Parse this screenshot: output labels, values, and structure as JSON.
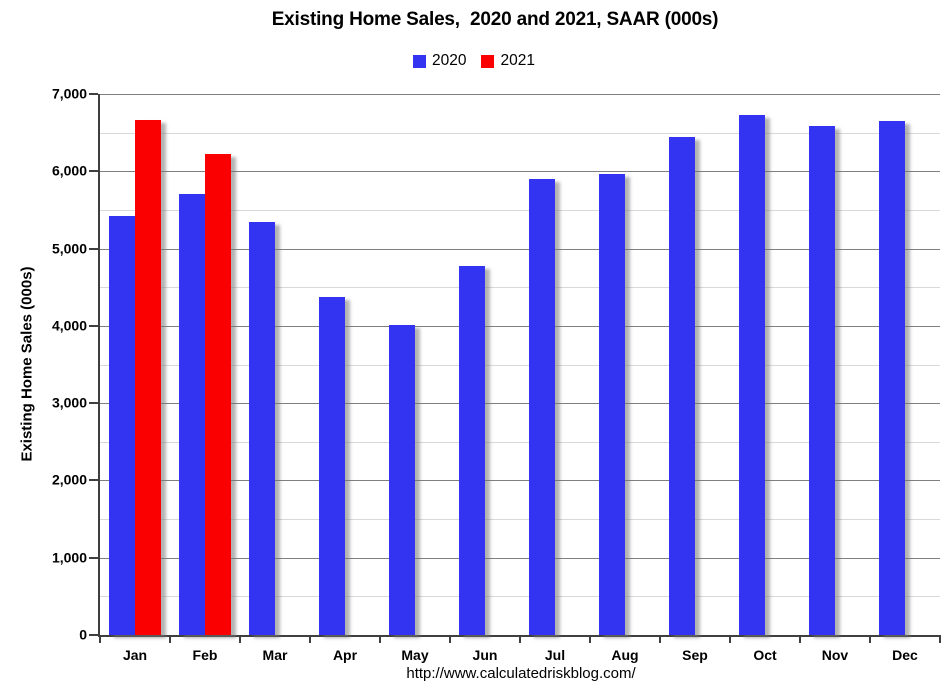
{
  "chart_data": {
    "type": "bar",
    "title": "Existing Home Sales,  2020 and 2021, SAAR (000s)",
    "categories": [
      "Jan",
      "Feb",
      "Mar",
      "Apr",
      "May",
      "Jun",
      "Jul",
      "Aug",
      "Sep",
      "Oct",
      "Nov",
      "Dec"
    ],
    "series": [
      {
        "name": "2020",
        "color": "#3333f2",
        "values": [
          5420,
          5700,
          5340,
          4370,
          4010,
          4770,
          5900,
          5970,
          6440,
          6730,
          6590,
          6650
        ]
      },
      {
        "name": "2021",
        "color": "#fb0000",
        "values": [
          6660,
          6220,
          null,
          null,
          null,
          null,
          null,
          null,
          null,
          null,
          null,
          null
        ]
      }
    ],
    "xlabel": "",
    "ylabel": "Existing Home Sales (000s)",
    "ylim": [
      0,
      7000
    ],
    "y_major_step": 1000,
    "y_minor_step": 500,
    "y_tick_labels": [
      "7,000",
      "6,000",
      "5,000",
      "4,000",
      "3,000",
      "2,000",
      "1,000",
      "0"
    ],
    "grid": "horizontal major and minor gridlines on",
    "legend_position": "top-center",
    "footer": "http://www.calculatedriskblog.com/"
  }
}
